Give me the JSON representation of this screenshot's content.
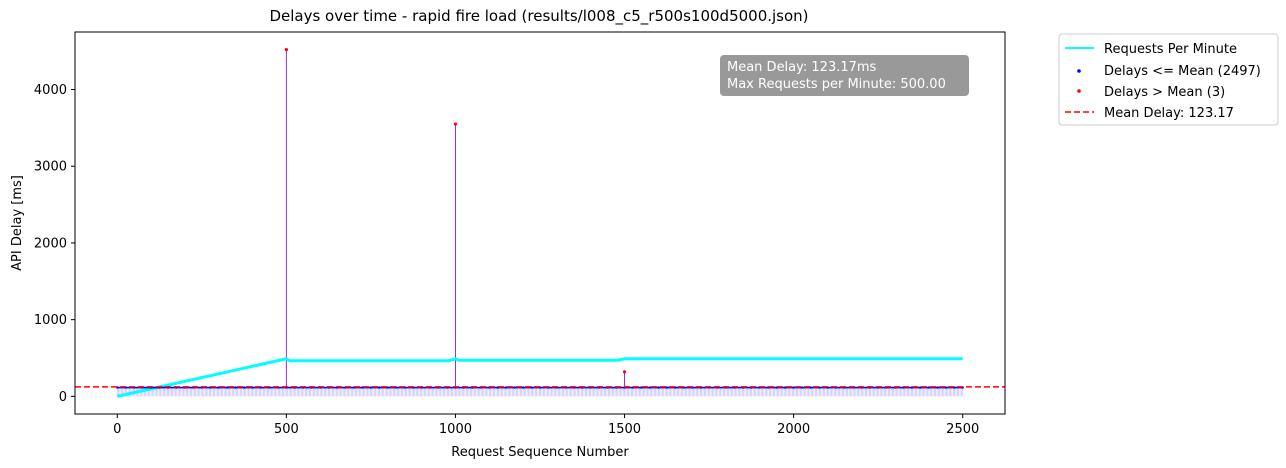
{
  "chart_data": {
    "type": "line",
    "title": "Delays over time - rapid fire load (results/l008_c5_r500s100d5000.json)",
    "xlabel": "Request Sequence Number",
    "ylabel": "API Delay [ms]",
    "xlim": [
      -125,
      2625
    ],
    "ylim": [
      -230,
      4750
    ],
    "x_ticks": [
      0,
      500,
      1000,
      1500,
      2000,
      2500
    ],
    "y_ticks": [
      0,
      1000,
      2000,
      3000,
      4000
    ],
    "grid": false,
    "legend_position": "outside-top-right",
    "stats_box": {
      "line1": "Mean Delay: 123.17ms",
      "line2": "Max Requests per Minute:  500.00"
    },
    "series": [
      {
        "name": "Requests Per Minute",
        "kind": "line",
        "color": "#00ffff",
        "x": [
          0,
          500,
          510,
          980,
          1000,
          1010,
          1480,
          1500,
          1510,
          2500
        ],
        "y": [
          0,
          490,
          465,
          465,
          490,
          470,
          470,
          490,
          490,
          490
        ]
      },
      {
        "name": "Delays <= Mean (2497)",
        "kind": "scatter",
        "color": "#0000ff",
        "x_range": [
          0,
          2500
        ],
        "typical_y": 115
      },
      {
        "name": "Delays > Mean (3)",
        "kind": "scatter",
        "color": "#ff0000",
        "x": [
          500,
          1000,
          1500
        ],
        "y": [
          4520,
          3550,
          320
        ]
      },
      {
        "name": "Mean Delay: 123.17",
        "kind": "hline",
        "color": "#ff0000",
        "y": 123.17
      }
    ]
  }
}
